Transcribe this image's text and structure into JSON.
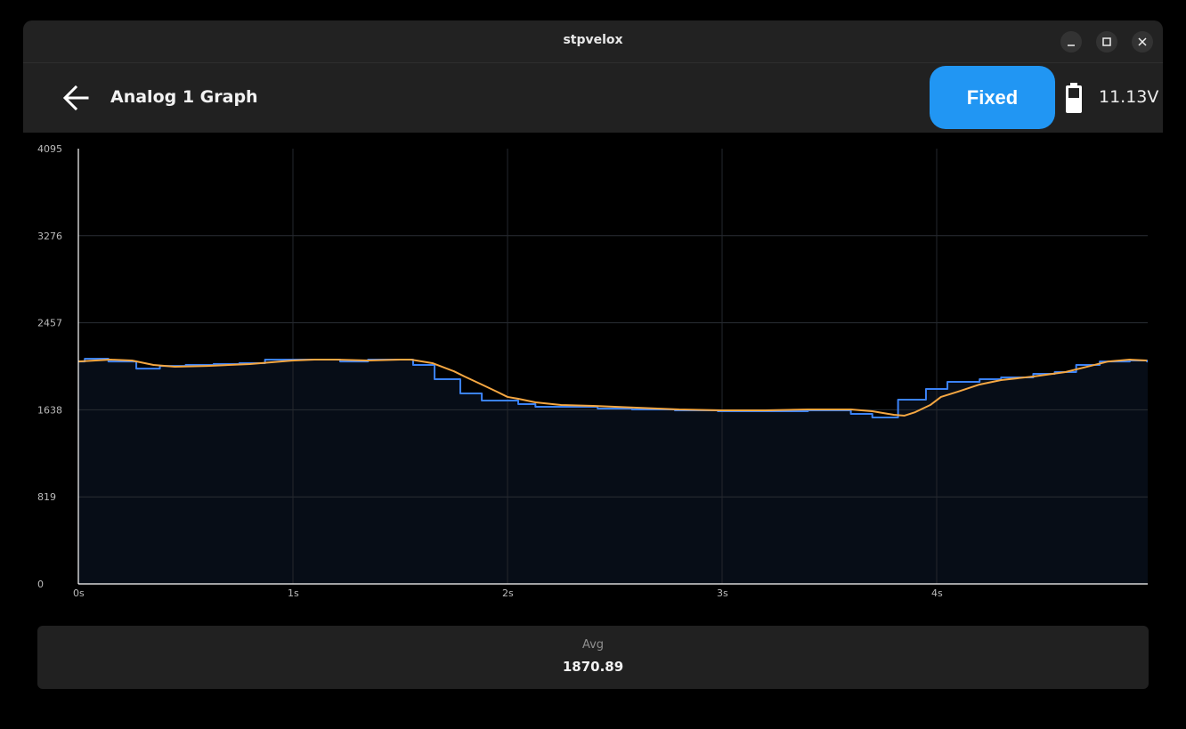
{
  "window": {
    "title": "stpvelox",
    "controls": [
      "minimize",
      "maximize",
      "close"
    ]
  },
  "appbar": {
    "back_icon": "arrow-left-icon",
    "title": "Analog 1 Graph",
    "mode_button": "Fixed",
    "battery_icon": "battery-icon",
    "voltage": "11.13V",
    "accent": "#2196f3"
  },
  "stats": {
    "avg_label": "Avg",
    "avg_value": "1870.89"
  },
  "chart_data": {
    "type": "line",
    "title": "",
    "xlabel": "",
    "ylabel": "",
    "ylim": [
      0,
      4095
    ],
    "xlim": [
      0,
      4.98
    ],
    "y_ticks": [
      0,
      819,
      1638,
      2457,
      3276,
      4095
    ],
    "x_ticks": [
      "0s",
      "1s",
      "2s",
      "3s",
      "4s"
    ],
    "grid": true,
    "legend": "none",
    "series": [
      {
        "name": "raw",
        "color": "#3b82f6",
        "step": true,
        "fill": "#070d17",
        "x": [
          0.0,
          0.03,
          0.14,
          0.27,
          0.38,
          0.5,
          0.63,
          0.75,
          0.87,
          1.13,
          1.22,
          1.35,
          1.56,
          1.66,
          1.78,
          1.88,
          1.98,
          2.05,
          2.13,
          2.27,
          2.42,
          2.58,
          2.78,
          2.98,
          3.2,
          3.4,
          3.6,
          3.7,
          3.82,
          3.85,
          3.95,
          4.05,
          4.2,
          4.3,
          4.45,
          4.55,
          4.65,
          4.76,
          4.9,
          4.98
        ],
        "values": [
          2093,
          2119,
          2093,
          2026,
          2051,
          2060,
          2068,
          2077,
          2110,
          2110,
          2093,
          2110,
          2060,
          1926,
          1792,
          1725,
          1725,
          1692,
          1666,
          1666,
          1650,
          1641,
          1633,
          1625,
          1625,
          1633,
          1600,
          1566,
          1733,
          1733,
          1834,
          1901,
          1926,
          1943,
          1976,
          1993,
          2060,
          2093,
          2102,
          2093
        ]
      },
      {
        "name": "average",
        "color": "#f5a742",
        "step": false,
        "x": [
          0.0,
          0.15,
          0.25,
          0.35,
          0.45,
          0.6,
          0.8,
          1.0,
          1.1,
          1.2,
          1.35,
          1.5,
          1.55,
          1.65,
          1.75,
          1.8,
          1.88,
          1.95,
          2.0,
          2.05,
          2.13,
          2.25,
          2.4,
          2.6,
          2.8,
          3.0,
          3.2,
          3.4,
          3.6,
          3.7,
          3.8,
          3.85,
          3.9,
          3.97,
          4.02,
          4.1,
          4.2,
          4.3,
          4.45,
          4.6,
          4.7,
          4.8,
          4.9,
          4.98
        ],
        "values": [
          2093,
          2110,
          2102,
          2060,
          2043,
          2051,
          2068,
          2102,
          2110,
          2110,
          2102,
          2110,
          2110,
          2077,
          2001,
          1951,
          1876,
          1809,
          1759,
          1742,
          1708,
          1683,
          1675,
          1658,
          1641,
          1633,
          1633,
          1641,
          1641,
          1625,
          1591,
          1583,
          1616,
          1683,
          1759,
          1809,
          1876,
          1918,
          1951,
          1993,
          2043,
          2093,
          2110,
          2102
        ]
      }
    ]
  }
}
